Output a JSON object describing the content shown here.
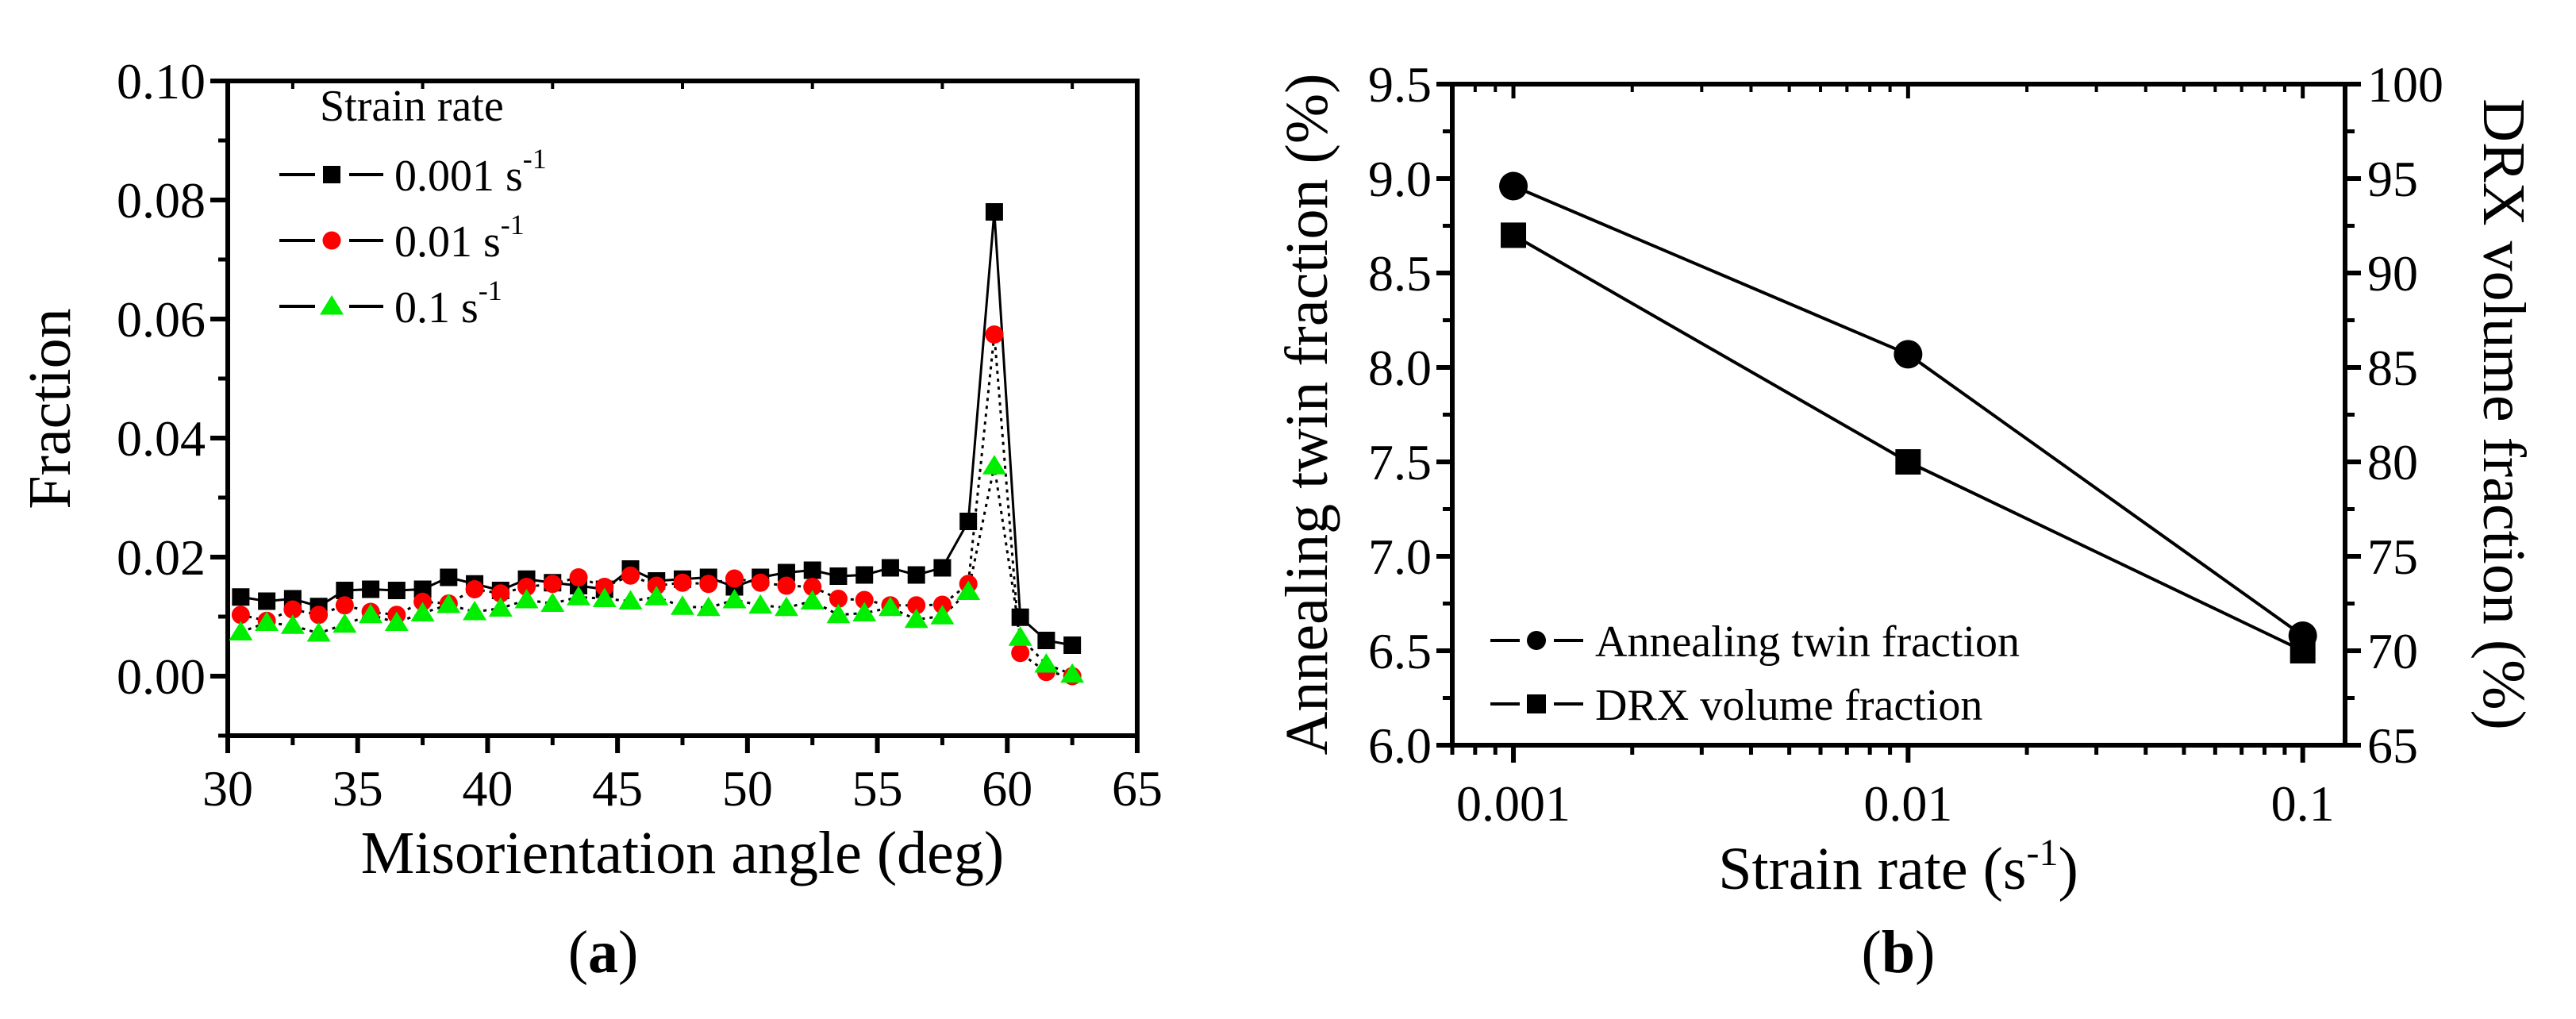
{
  "chart_data": [
    {
      "panel_label": "a",
      "type": "line",
      "xlabel": "Misorientation angle (deg)",
      "ylabel": "Fraction",
      "xlim": [
        30,
        65
      ],
      "ylim": [
        -0.01,
        0.1
      ],
      "xticks": [
        30,
        35,
        40,
        45,
        50,
        55,
        60,
        65
      ],
      "yticks": [
        "0.00",
        "0.02",
        "0.04",
        "0.06",
        "0.08",
        "0.10"
      ],
      "legend_title": "Strain rate",
      "legend_position": "top-left",
      "x": [
        30.5,
        31.5,
        32.5,
        33.5,
        34.5,
        35.5,
        36.5,
        37.5,
        38.5,
        39.5,
        40.5,
        41.5,
        42.5,
        43.5,
        44.5,
        45.5,
        46.5,
        47.5,
        48.5,
        49.5,
        50.5,
        51.5,
        52.5,
        53.5,
        54.5,
        55.5,
        56.5,
        57.5,
        58.5,
        59.5,
        60.5,
        61.5,
        62.5
      ],
      "series": [
        {
          "name": "0.001 s",
          "unit_sup": "-1",
          "marker": "square",
          "color": "#000000",
          "values": [
            0.0133,
            0.0126,
            0.013,
            0.0117,
            0.0144,
            0.0146,
            0.0144,
            0.0146,
            0.0166,
            0.0155,
            0.0144,
            0.0163,
            0.0157,
            0.0152,
            0.0146,
            0.018,
            0.016,
            0.0163,
            0.0166,
            0.015,
            0.0166,
            0.0174,
            0.0178,
            0.0168,
            0.017,
            0.0182,
            0.017,
            0.0182,
            0.026,
            0.078,
            0.0099,
            0.006,
            0.0052
          ]
        },
        {
          "name": "0.01  s",
          "unit_sup": "-1",
          "marker": "circle",
          "color": "#ff0000",
          "values": [
            0.0103,
            0.0093,
            0.0112,
            0.0103,
            0.0119,
            0.0108,
            0.0103,
            0.0125,
            0.0122,
            0.0146,
            0.0139,
            0.015,
            0.0155,
            0.0166,
            0.015,
            0.0169,
            0.0152,
            0.0157,
            0.0155,
            0.0164,
            0.0157,
            0.0152,
            0.015,
            0.013,
            0.0128,
            0.0119,
            0.0119,
            0.012,
            0.0155,
            0.0574,
            0.0039,
            0.0007,
            0.0
          ]
        },
        {
          "name": "0.1  s",
          "unit_sup": "-1",
          "marker": "triangle",
          "color": "#00ee00",
          "values": [
            0.0074,
            0.009,
            0.0085,
            0.0072,
            0.0087,
            0.0103,
            0.009,
            0.0106,
            0.012,
            0.0108,
            0.0114,
            0.0128,
            0.0122,
            0.0133,
            0.013,
            0.0126,
            0.0133,
            0.0117,
            0.0115,
            0.0128,
            0.0119,
            0.0115,
            0.0126,
            0.0103,
            0.0106,
            0.0115,
            0.0095,
            0.0101,
            0.0142,
            0.0353,
            0.0065,
            0.002,
            0.0003
          ]
        }
      ]
    },
    {
      "panel_label": "b",
      "type": "line",
      "xlabel": "Strain rate (s",
      "xlabel_sup": "-1",
      "xlabel_end": ")",
      "ylabel": "Annealing twin fraction (%)",
      "y2label": "DRX volume fraction (%)",
      "xscale": "log",
      "xlim": [
        0.0007,
        0.128
      ],
      "ylim": [
        6.0,
        9.5
      ],
      "y2lim": [
        65,
        100
      ],
      "xticks": [
        "0.001",
        "0.01",
        "0.1"
      ],
      "yticks": [
        "6.0",
        "6.5",
        "7.0",
        "7.5",
        "8.0",
        "8.5",
        "9.0",
        "9.5"
      ],
      "y2ticks": [
        "65",
        "70",
        "75",
        "80",
        "85",
        "90",
        "95",
        "100"
      ],
      "legend_position": "bottom-left",
      "x": [
        0.001,
        0.01,
        0.1
      ],
      "series": [
        {
          "name": "Annealing  twin fraction",
          "marker": "circle",
          "color": "#000000",
          "axis": "left",
          "values": [
            8.96,
            8.07,
            6.58
          ]
        },
        {
          "name": "DRX volume fraction",
          "marker": "square",
          "color": "#000000",
          "axis": "right",
          "values": [
            92,
            80,
            70
          ]
        }
      ]
    }
  ]
}
